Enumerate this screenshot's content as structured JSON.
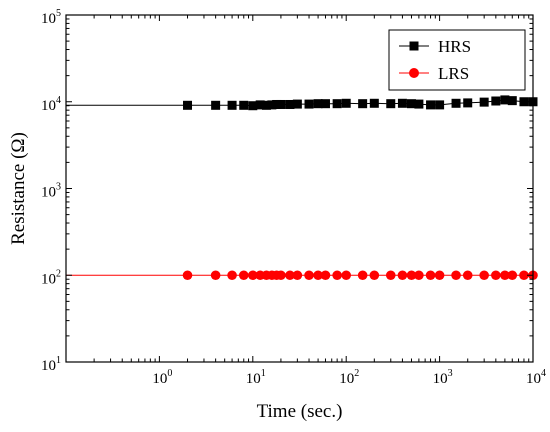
{
  "chart_data": {
    "type": "scatter",
    "xlabel": "Time (sec.)",
    "ylabel": "Resistance (Ω)",
    "xscale": "log",
    "yscale": "log",
    "xlim": [
      0.1,
      10000
    ],
    "ylim": [
      10,
      100000
    ],
    "x_major_ticks": [
      1,
      10,
      100,
      1000,
      10000
    ],
    "y_major_ticks": [
      10,
      100,
      1000,
      10000,
      100000
    ],
    "x_tick_labels": [
      {
        "base": "10",
        "exp": "0"
      },
      {
        "base": "10",
        "exp": "1"
      },
      {
        "base": "10",
        "exp": "2"
      },
      {
        "base": "10",
        "exp": "3"
      },
      {
        "base": "10",
        "exp": "4"
      }
    ],
    "y_tick_labels": [
      {
        "base": "10",
        "exp": "1"
      },
      {
        "base": "10",
        "exp": "2"
      },
      {
        "base": "10",
        "exp": "3"
      },
      {
        "base": "10",
        "exp": "4"
      },
      {
        "base": "10",
        "exp": "5"
      }
    ],
    "grid": false,
    "legend_position": "top-right",
    "series": [
      {
        "name": "HRS",
        "color": "#000000",
        "marker": "square",
        "line_from_x": 0.1,
        "x": [
          2,
          4,
          6,
          8,
          10,
          12,
          14,
          16,
          18,
          20,
          25,
          30,
          40,
          50,
          60,
          80,
          100,
          150,
          200,
          300,
          400,
          500,
          600,
          800,
          1000,
          1500,
          2000,
          3000,
          4000,
          5000,
          6000,
          8000,
          10000
        ],
        "y": [
          9100,
          9100,
          9100,
          9100,
          9000,
          9200,
          9100,
          9200,
          9300,
          9300,
          9300,
          9400,
          9400,
          9500,
          9500,
          9500,
          9600,
          9500,
          9600,
          9500,
          9600,
          9500,
          9400,
          9200,
          9200,
          9600,
          9700,
          9900,
          10200,
          10500,
          10300,
          10000,
          10000
        ]
      },
      {
        "name": "LRS",
        "color": "#ff0000",
        "marker": "circle",
        "line_from_x": 0.1,
        "x": [
          2,
          4,
          6,
          8,
          10,
          12,
          14,
          16,
          18,
          20,
          25,
          30,
          40,
          50,
          60,
          80,
          100,
          150,
          200,
          300,
          400,
          500,
          600,
          800,
          1000,
          1500,
          2000,
          3000,
          4000,
          5000,
          6000,
          8000,
          10000
        ],
        "y": [
          100,
          100,
          100,
          100,
          100,
          100,
          100,
          100,
          100,
          100,
          100,
          100,
          100,
          100,
          100,
          100,
          100,
          100,
          100,
          100,
          100,
          100,
          100,
          100,
          100,
          100,
          100,
          100,
          100,
          100,
          100,
          100,
          100
        ]
      }
    ]
  }
}
